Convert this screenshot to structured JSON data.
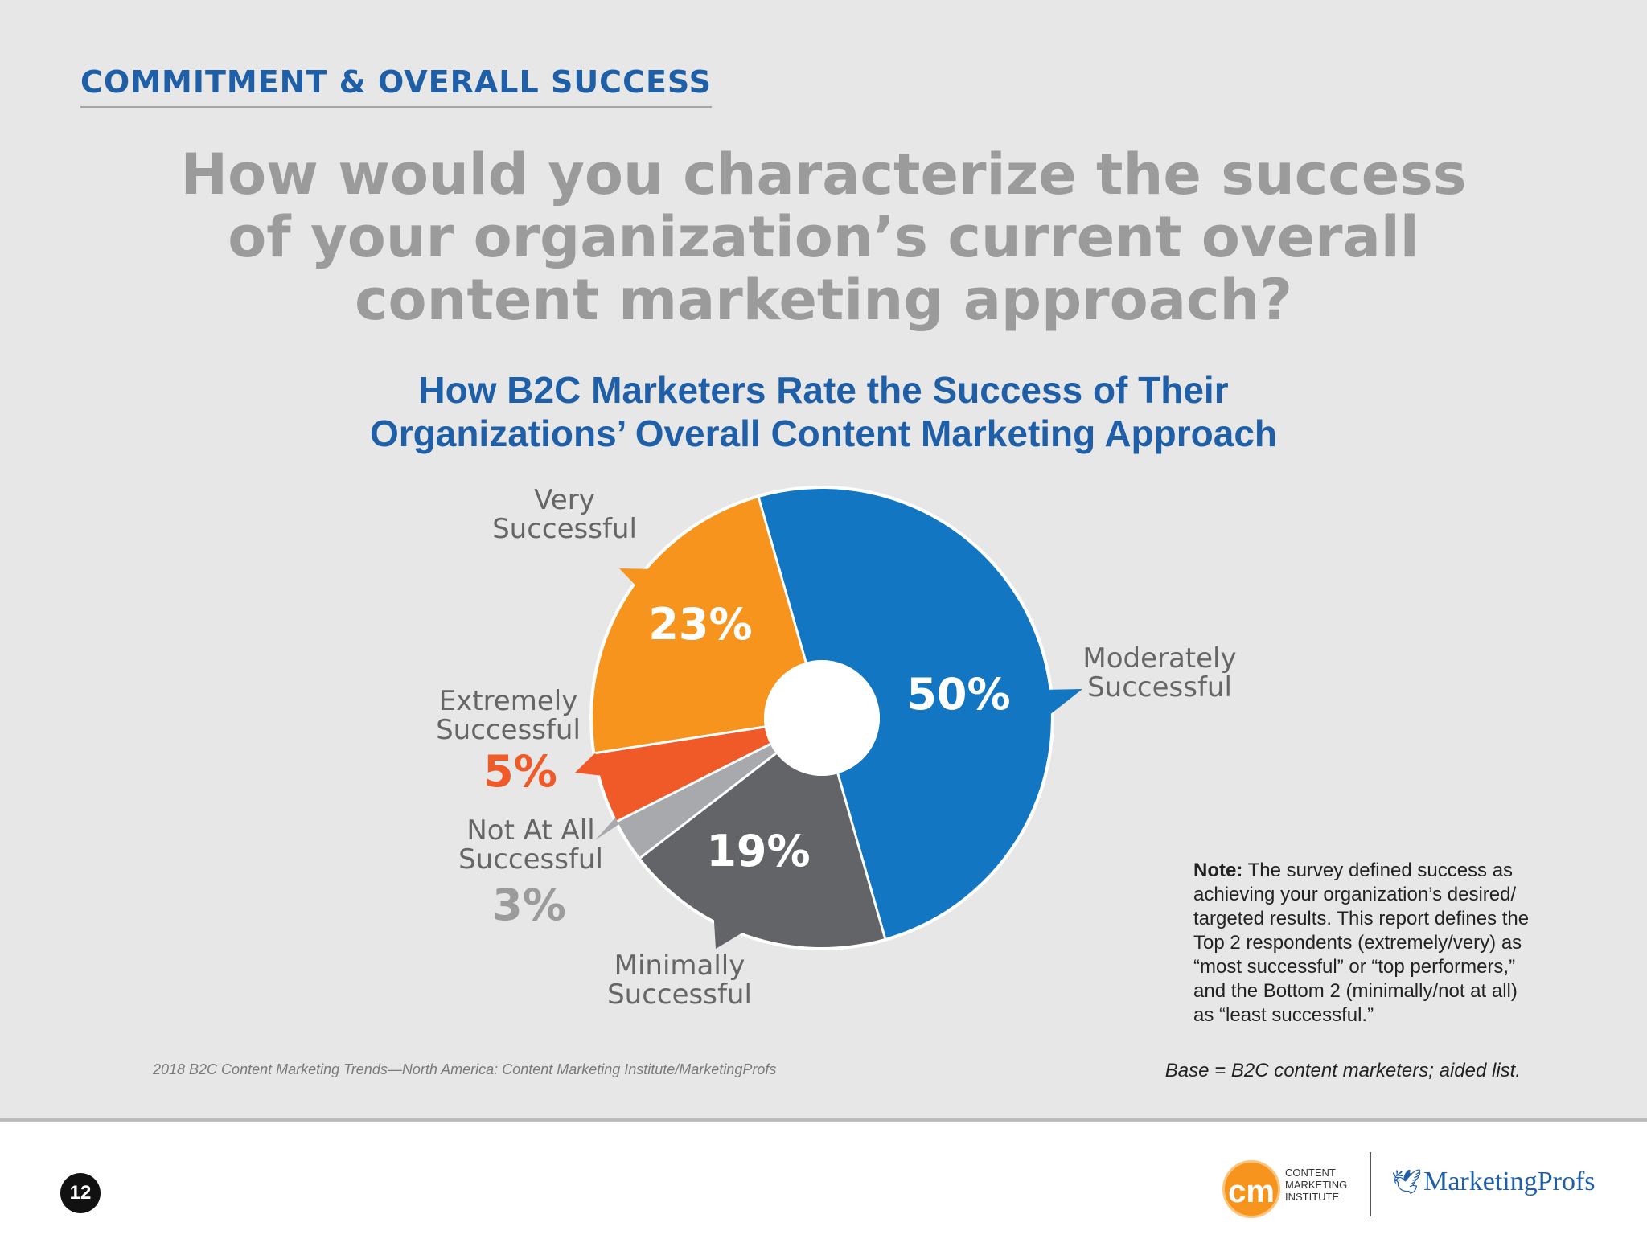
{
  "header": {
    "section_title": "COMMITMENT & OVERALL SUCCESS",
    "question_lines": [
      "How would you characterize the success",
      "of your organization’s current overall",
      "content marketing approach?"
    ]
  },
  "chart_data": {
    "type": "pie",
    "donut_hole": true,
    "title_lines": [
      "How B2C Marketers Rate the Success of Their",
      "Organizations’ Overall Content Marketing Approach"
    ],
    "categories": [
      "Moderately Successful",
      "Minimally Successful",
      "Not At All Successful",
      "Extremely Successful",
      "Very Successful"
    ],
    "values": [
      50,
      19,
      3,
      5,
      23
    ],
    "value_labels": [
      "50%",
      "19%",
      "3%",
      "5%",
      "23%"
    ],
    "label_lines": [
      [
        "Moderately",
        "Successful"
      ],
      [
        "Minimally",
        "Successful"
      ],
      [
        "Not At All",
        "Successful"
      ],
      [
        "Extremely",
        "Successful"
      ],
      [
        "Very",
        "Successful"
      ]
    ],
    "colors": [
      "#1276c2",
      "#636467",
      "#a7a9ac",
      "#f05a28",
      "#f7941d"
    ],
    "value_label_colors": [
      "#ffffff",
      "#ffffff",
      "#9b9b9b",
      "#f05a28",
      "#ffffff"
    ]
  },
  "note": {
    "label": "Note:",
    "text": "The survey defined success as achieving your organization’s desired/ targeted results. This report defines the Top 2 respondents (extremely/very) as “most successful” or “top performers,” and the Bottom 2 (minimally/not at all) as “least successful.”"
  },
  "base_text": "Base = B2C content marketers; aided list.",
  "source_text": "2018 B2C Content Marketing Trends—North America: Content Marketing Institute/MarketingProfs",
  "footer": {
    "page_number": "12",
    "cmi_logo_letters": "cm",
    "cmi_text_lines": [
      "CONTENT",
      "MARKETING",
      "INSTITUTE"
    ],
    "mp_logo_text": "MarketingProfs",
    "mp_bird_icon": "bird-icon"
  }
}
